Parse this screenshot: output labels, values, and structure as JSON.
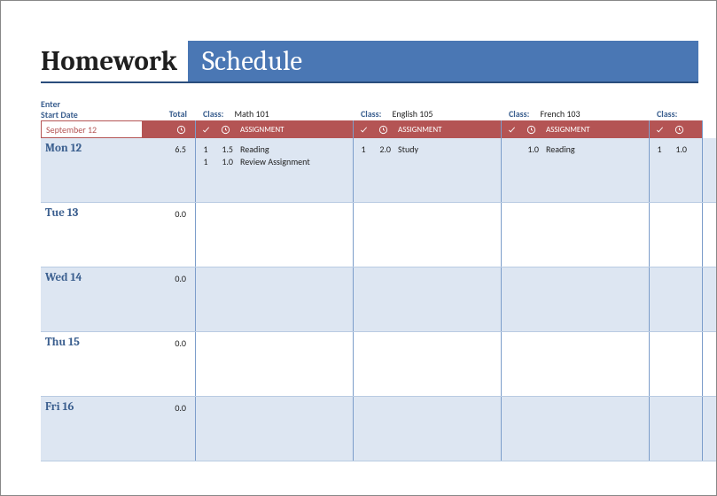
{
  "colors": {
    "title_bar_bg": "#4a77b4",
    "title_border": "#2a4d7c",
    "accent_text": "#3b5f8f",
    "header_bar_bg": "#b45454",
    "col_divider": "#7c9dca",
    "row_alt_bg": "#dde6f2",
    "row_border": "#b9cbe2"
  },
  "title": {
    "left": "Homework",
    "right": "Schedule"
  },
  "meta": {
    "start_label_l1": "Enter",
    "start_label_l2": "Start Date",
    "total_label": "Total",
    "start_date_value": "September 12",
    "class_prefix": "Class:",
    "assignment_header": "ASSIGNMENT",
    "check_header_aria": "done",
    "hours_header_aria": "hours"
  },
  "classes": [
    {
      "name": "Math 101"
    },
    {
      "name": "English 105"
    },
    {
      "name": "French 103"
    },
    {
      "name": ""
    }
  ],
  "days": [
    {
      "label": "Mon 12",
      "total": "6.5",
      "cells": [
        {
          "items": [
            {
              "check": "1",
              "hrs": "1.5",
              "txt": "Reading"
            },
            {
              "check": "1",
              "hrs": "1.0",
              "txt": "Review Assignment"
            }
          ]
        },
        {
          "items": [
            {
              "check": "1",
              "hrs": "2.0",
              "txt": "Study"
            }
          ]
        },
        {
          "items": [
            {
              "check": "",
              "hrs": "1.0",
              "txt": "Reading"
            }
          ]
        },
        {
          "items": [
            {
              "check": "1",
              "hrs": "1.0",
              "txt": ""
            }
          ]
        }
      ]
    },
    {
      "label": "Tue 13",
      "total": "0.0",
      "cells": [
        {
          "items": []
        },
        {
          "items": []
        },
        {
          "items": []
        },
        {
          "items": []
        }
      ]
    },
    {
      "label": "Wed 14",
      "total": "0.0",
      "cells": [
        {
          "items": []
        },
        {
          "items": []
        },
        {
          "items": []
        },
        {
          "items": []
        }
      ]
    },
    {
      "label": "Thu 15",
      "total": "0.0",
      "cells": [
        {
          "items": []
        },
        {
          "items": []
        },
        {
          "items": []
        },
        {
          "items": []
        }
      ]
    },
    {
      "label": "Fri 16",
      "total": "0.0",
      "cells": [
        {
          "items": []
        },
        {
          "items": []
        },
        {
          "items": []
        },
        {
          "items": []
        }
      ]
    }
  ]
}
